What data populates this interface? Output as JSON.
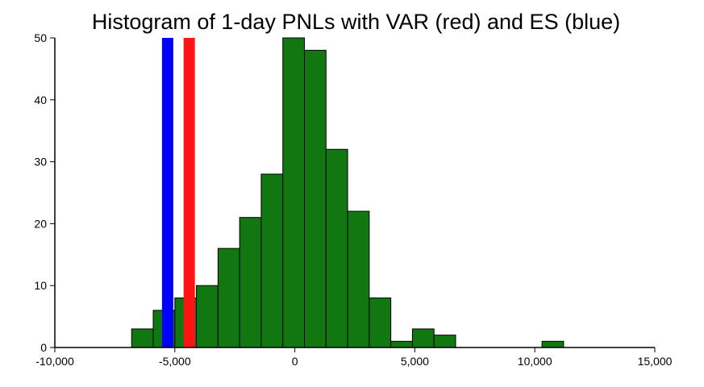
{
  "chart_data": {
    "type": "bar",
    "title": "Histogram of 1-day PNLs with VAR (red) and ES (blue)",
    "xlim": [
      -10000,
      15000
    ],
    "ylim": [
      0,
      50
    ],
    "x_ticks": [
      -10000,
      -5000,
      0,
      5000,
      10000,
      15000
    ],
    "x_tick_labels": [
      "-10,000",
      "-5,000",
      "0",
      "5,000",
      "10,000",
      "15,000"
    ],
    "y_ticks": [
      0,
      10,
      20,
      30,
      40,
      50
    ],
    "y_tick_labels": [
      "0",
      "10",
      "20",
      "30",
      "40",
      "50"
    ],
    "bins": [
      {
        "x0": -6800,
        "x1": -5900,
        "count": 3
      },
      {
        "x0": -5900,
        "x1": -5000,
        "count": 6
      },
      {
        "x0": -5000,
        "x1": -4100,
        "count": 8
      },
      {
        "x0": -4100,
        "x1": -3200,
        "count": 10
      },
      {
        "x0": -3200,
        "x1": -2300,
        "count": 16
      },
      {
        "x0": -2300,
        "x1": -1400,
        "count": 21
      },
      {
        "x0": -1400,
        "x1": -500,
        "count": 28
      },
      {
        "x0": -500,
        "x1": 400,
        "count": 50
      },
      {
        "x0": 400,
        "x1": 1300,
        "count": 48
      },
      {
        "x0": 1300,
        "x1": 2200,
        "count": 32
      },
      {
        "x0": 2200,
        "x1": 3100,
        "count": 22
      },
      {
        "x0": 3100,
        "x1": 4000,
        "count": 8
      },
      {
        "x0": 4000,
        "x1": 4900,
        "count": 1
      },
      {
        "x0": 4900,
        "x1": 5800,
        "count": 3
      },
      {
        "x0": 5800,
        "x1": 6700,
        "count": 2
      },
      {
        "x0": 10300,
        "x1": 11200,
        "count": 1
      }
    ],
    "lines": [
      {
        "name": "ES",
        "x": -5300,
        "color": "#0000ff"
      },
      {
        "name": "VAR",
        "x": -4400,
        "color": "#ff1414"
      }
    ],
    "bar_color": "#117711",
    "grid": false
  }
}
